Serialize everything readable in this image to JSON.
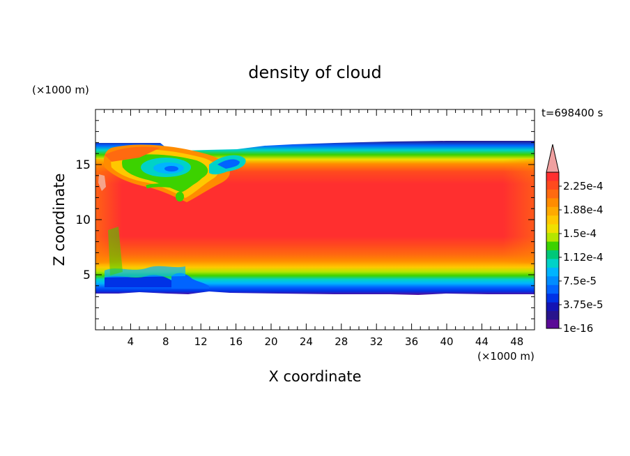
{
  "chart_data": {
    "type": "heatmap",
    "title": "density of cloud",
    "xlabel": "X coordinate",
    "ylabel": "Z coordinate",
    "x_unit": "(×1000 m)",
    "y_unit": "(×1000 m)",
    "time_label": "t=698400 s",
    "xlim": [
      0,
      50
    ],
    "ylim": [
      0,
      20
    ],
    "x_ticks": [
      "4",
      "8",
      "12",
      "16",
      "20",
      "24",
      "28",
      "32",
      "36",
      "40",
      "44",
      "48"
    ],
    "y_ticks": [
      "5",
      "10",
      "15"
    ],
    "colorbar": {
      "labels": [
        "2.25e-4",
        "1.88e-4",
        "1.5e-4",
        "1.12e-4",
        "7.5e-5",
        "3.75e-5",
        "1e-16"
      ],
      "colors": [
        "#ff2f2f",
        "#ff4a1e",
        "#ff6a10",
        "#ff8c00",
        "#ffaa00",
        "#ffc800",
        "#f0e000",
        "#b4e600",
        "#3cd200",
        "#00c878",
        "#00d2c8",
        "#00b4ff",
        "#008cff",
        "#0064ff",
        "#0032e6",
        "#1414b4",
        "#28148c",
        "#5a0a96"
      ],
      "extend_color": "#f0a0a0"
    },
    "cloud_layer": {
      "base_km": 3.5,
      "top_km": 16.5,
      "core_range_km": [
        7.5,
        14
      ],
      "peak_density": 0.000225
    }
  }
}
